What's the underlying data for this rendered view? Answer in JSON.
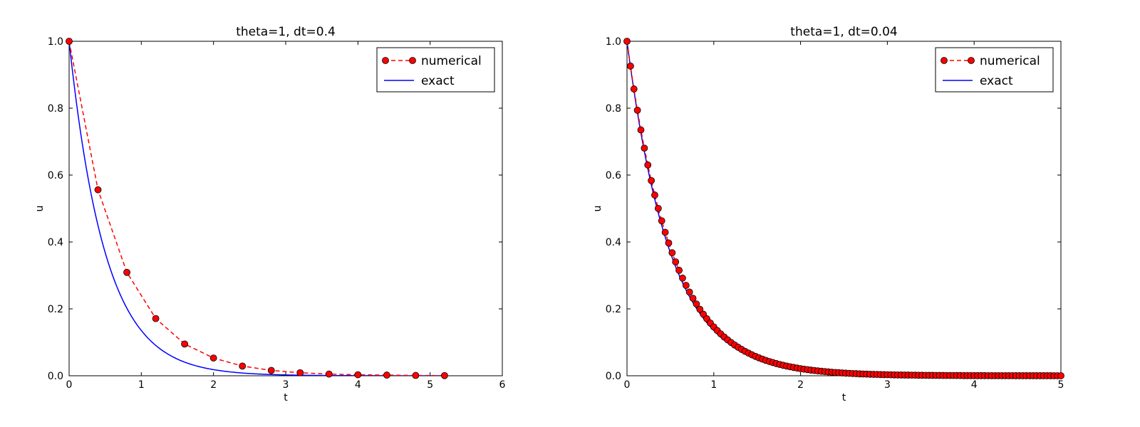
{
  "chart_data": [
    {
      "type": "line",
      "title": "theta=1, dt=0.4",
      "xlabel": "t",
      "ylabel": "u",
      "xlim": [
        0,
        6
      ],
      "ylim": [
        0,
        1
      ],
      "xticks": [
        0,
        1,
        2,
        3,
        4,
        5,
        6
      ],
      "yticks": [
        0.0,
        0.2,
        0.4,
        0.6,
        0.8,
        1.0
      ],
      "legend_position": "top-right",
      "series": [
        {
          "name": "numerical",
          "style": "dashed-with-circle-markers",
          "color": "#ff0000",
          "x": [
            0,
            0.4,
            0.8,
            1.2,
            1.6,
            2.0,
            2.4,
            2.8,
            3.2,
            3.6,
            4.0,
            4.4,
            4.8,
            5.2
          ],
          "y": [
            1.0,
            0.556,
            0.309,
            0.171,
            0.095,
            0.053,
            0.029,
            0.016,
            0.009,
            0.005,
            0.003,
            0.002,
            0.001,
            0.0005
          ]
        },
        {
          "name": "exact",
          "style": "solid",
          "color": "#0000ff",
          "function": "exp(-2t)",
          "x_range": [
            0,
            5.2
          ]
        }
      ]
    },
    {
      "type": "line",
      "title": "theta=1, dt=0.04",
      "xlabel": "t",
      "ylabel": "u",
      "xlim": [
        0,
        5
      ],
      "ylim": [
        0,
        1
      ],
      "xticks": [
        0,
        1,
        2,
        3,
        4,
        5
      ],
      "yticks": [
        0.0,
        0.2,
        0.4,
        0.6,
        0.8,
        1.0
      ],
      "legend_position": "top-right",
      "series": [
        {
          "name": "numerical",
          "style": "dashed-with-circle-markers",
          "color": "#ff0000",
          "dt": 0.04,
          "x_range": [
            0,
            5.0
          ],
          "recurrence": "u[n+1] = u[n] / (1 + 2*dt), u[0] = 1"
        },
        {
          "name": "exact",
          "style": "solid",
          "color": "#0000ff",
          "function": "exp(-2t)",
          "x_range": [
            0,
            5.0
          ]
        }
      ]
    }
  ]
}
